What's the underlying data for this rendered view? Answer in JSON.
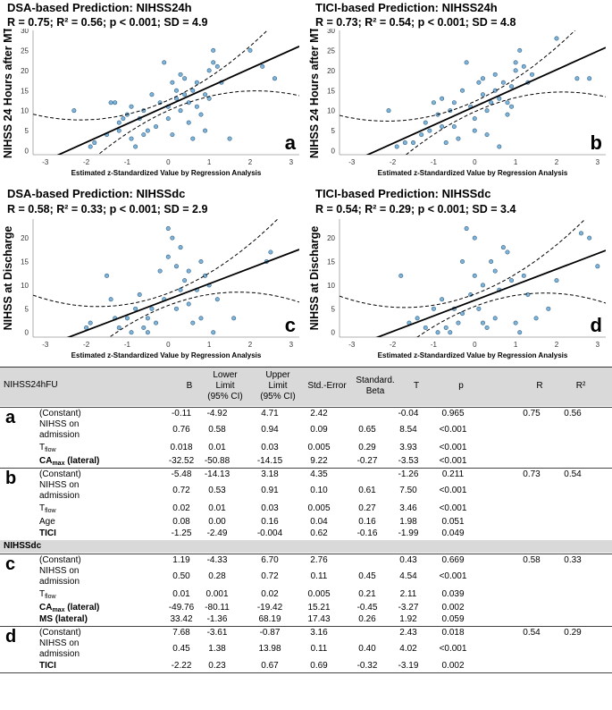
{
  "panels": [
    {
      "id": "a",
      "title": "DSA-based Prediction: NIHSS24h",
      "stats": "R = 0.75; R² = 0.56; p < 0.001; SD = 4.9",
      "ylabel": "NIHSS 24 Hours after MT",
      "xlabel": "Estimated z-Standardized Value by Regression Analysis",
      "letter": "a"
    },
    {
      "id": "b",
      "title": "TICI-based Prediction: NIHSS24h",
      "stats": "R = 0.73; R² = 0.54; p < 0.001; SD = 4.8",
      "ylabel": "NIHSS 24 Hours after MT",
      "xlabel": "Estimated z-Standardized Value by Regression Analysis",
      "letter": "b"
    },
    {
      "id": "c",
      "title": "DSA-based Prediction: NIHSSdc",
      "stats": "R = 0.58; R² = 0.33; p < 0.001; SD = 2.9",
      "ylabel": "NIHSS at Discharge",
      "xlabel": "Estimated z-Standardized Value by Regression Analysis",
      "letter": "c"
    },
    {
      "id": "d",
      "title": "TICI-based Prediction: NIHSSdc",
      "stats": "R = 0.54; R² = 0.29; p < 0.001; SD = 3.4",
      "ylabel": "NIHSS at Discharge",
      "xlabel": "Estimated z-Standardized Value by Regression Analysis",
      "letter": "d"
    }
  ],
  "chart_data": [
    {
      "type": "scatter",
      "title": "DSA-based Prediction: NIHSS24h",
      "xlabel": "Estimated z-Standardized Value by Regression Analysis",
      "ylabel": "NIHSS 24 Hours after MT",
      "xlim": [
        -3.3,
        3.2
      ],
      "ylim": [
        -1,
        30
      ],
      "xticks": [
        -3,
        -2,
        -1,
        0,
        1,
        2,
        3
      ],
      "yticks": [
        0,
        5,
        10,
        15,
        20,
        25,
        30
      ],
      "fit": {
        "intercept": 11.3,
        "slope": 4.6
      },
      "ci": 0.28,
      "points": [
        [
          -2.3,
          10
        ],
        [
          -1.9,
          1
        ],
        [
          -1.8,
          2
        ],
        [
          -1.5,
          4
        ],
        [
          -1.4,
          12
        ],
        [
          -1.3,
          12
        ],
        [
          -1.2,
          7
        ],
        [
          -1.1,
          8
        ],
        [
          -1.0,
          9
        ],
        [
          -0.9,
          3
        ],
        [
          -0.8,
          1
        ],
        [
          -0.7,
          8
        ],
        [
          -0.6,
          10
        ],
        [
          -0.5,
          5
        ],
        [
          -0.4,
          14
        ],
        [
          -0.3,
          6
        ],
        [
          -0.2,
          12
        ],
        [
          -0.1,
          22
        ],
        [
          0.0,
          11
        ],
        [
          0.0,
          8
        ],
        [
          0.1,
          4
        ],
        [
          0.1,
          17
        ],
        [
          0.2,
          15
        ],
        [
          0.2,
          13
        ],
        [
          0.3,
          10
        ],
        [
          0.3,
          19
        ],
        [
          0.4,
          14
        ],
        [
          0.5,
          7
        ],
        [
          0.5,
          12
        ],
        [
          0.6,
          15
        ],
        [
          0.7,
          17
        ],
        [
          0.7,
          11
        ],
        [
          0.8,
          9
        ],
        [
          0.9,
          5
        ],
        [
          1.0,
          20
        ],
        [
          1.1,
          25
        ],
        [
          1.1,
          22
        ],
        [
          1.2,
          21
        ],
        [
          1.3,
          17
        ],
        [
          1.5,
          3
        ],
        [
          2.0,
          25
        ],
        [
          2.3,
          21
        ],
        [
          2.6,
          18
        ],
        [
          -1.2,
          5
        ],
        [
          -0.6,
          4
        ],
        [
          0.6,
          3
        ],
        [
          0.9,
          14
        ],
        [
          -0.9,
          11
        ],
        [
          0.4,
          18
        ],
        [
          1.0,
          13
        ]
      ]
    },
    {
      "type": "scatter",
      "title": "TICI-based Prediction: NIHSS24h",
      "xlabel": "Estimated z-Standardized Value by Regression Analysis",
      "ylabel": "NIHSS 24 Hours after MT",
      "xlim": [
        -3.3,
        3.2
      ],
      "ylim": [
        -1,
        30
      ],
      "xticks": [
        -3,
        -2,
        -1,
        0,
        1,
        2,
        3
      ],
      "yticks": [
        0,
        5,
        10,
        15,
        20,
        25,
        30
      ],
      "fit": {
        "intercept": 11.0,
        "slope": 4.6
      },
      "ci": 0.28,
      "points": [
        [
          -2.1,
          10
        ],
        [
          -1.9,
          1
        ],
        [
          -1.7,
          2
        ],
        [
          -1.5,
          2
        ],
        [
          -1.3,
          4
        ],
        [
          -1.1,
          5
        ],
        [
          -1.0,
          12
        ],
        [
          -0.9,
          9
        ],
        [
          -0.8,
          6
        ],
        [
          -0.7,
          2
        ],
        [
          -0.6,
          10
        ],
        [
          -0.5,
          12
        ],
        [
          -0.4,
          3
        ],
        [
          -0.3,
          15
        ],
        [
          -0.2,
          22
        ],
        [
          -0.1,
          11
        ],
        [
          0.0,
          8
        ],
        [
          0.0,
          5
        ],
        [
          0.1,
          17
        ],
        [
          0.2,
          14
        ],
        [
          0.3,
          10
        ],
        [
          0.4,
          12
        ],
        [
          0.5,
          15
        ],
        [
          0.5,
          19
        ],
        [
          0.6,
          1
        ],
        [
          0.6,
          13
        ],
        [
          0.7,
          17
        ],
        [
          0.8,
          9
        ],
        [
          0.9,
          16
        ],
        [
          1.0,
          20
        ],
        [
          1.0,
          22
        ],
        [
          1.1,
          25
        ],
        [
          1.2,
          21
        ],
        [
          1.3,
          17
        ],
        [
          2.0,
          28
        ],
        [
          2.5,
          18
        ],
        [
          2.8,
          18
        ],
        [
          -1.2,
          7
        ],
        [
          -0.5,
          6
        ],
        [
          0.3,
          4
        ],
        [
          0.8,
          12
        ],
        [
          1.4,
          19
        ],
        [
          -0.8,
          13
        ],
        [
          0.2,
          18
        ],
        [
          0.9,
          11
        ]
      ]
    },
    {
      "type": "scatter",
      "title": "DSA-based Prediction: NIHSSdc",
      "xlabel": "Estimated z-Standardized Value by Regression Analysis",
      "ylabel": "NIHSS at Discharge",
      "xlim": [
        -3.3,
        3.2
      ],
      "ylim": [
        -1,
        24
      ],
      "xticks": [
        -3,
        -2,
        -1,
        0,
        1,
        2,
        3
      ],
      "yticks": [
        0,
        5,
        10,
        15,
        20
      ],
      "fit": {
        "intercept": 7.0,
        "slope": 3.3
      },
      "ci": 0.35,
      "points": [
        [
          -2.0,
          1
        ],
        [
          -1.9,
          2
        ],
        [
          -1.5,
          12
        ],
        [
          -1.4,
          7
        ],
        [
          -1.3,
          3
        ],
        [
          -1.2,
          1
        ],
        [
          -1.0,
          3
        ],
        [
          -0.9,
          0
        ],
        [
          -0.8,
          5
        ],
        [
          -0.7,
          8
        ],
        [
          -0.6,
          1
        ],
        [
          -0.5,
          0
        ],
        [
          -0.4,
          5
        ],
        [
          -0.3,
          2
        ],
        [
          -0.2,
          13
        ],
        [
          -0.1,
          7
        ],
        [
          0.0,
          22
        ],
        [
          0.0,
          16
        ],
        [
          0.1,
          20
        ],
        [
          0.2,
          14
        ],
        [
          0.3,
          9
        ],
        [
          0.3,
          18
        ],
        [
          0.4,
          11
        ],
        [
          0.5,
          6
        ],
        [
          0.6,
          2
        ],
        [
          0.7,
          9
        ],
        [
          0.8,
          3
        ],
        [
          0.9,
          12
        ],
        [
          1.0,
          10
        ],
        [
          1.1,
          0
        ],
        [
          1.2,
          7
        ],
        [
          1.6,
          3
        ],
        [
          2.4,
          15
        ],
        [
          2.5,
          17
        ],
        [
          0.5,
          13
        ],
        [
          0.2,
          5
        ],
        [
          -0.5,
          3
        ],
        [
          0.8,
          15
        ]
      ]
    },
    {
      "type": "scatter",
      "title": "TICI-based Prediction: NIHSSdc",
      "xlabel": "Estimated z-Standardized Value by Regression Analysis",
      "ylabel": "NIHSS at Discharge",
      "xlim": [
        -3.3,
        3.2
      ],
      "ylim": [
        -1,
        24
      ],
      "xticks": [
        -3,
        -2,
        -1,
        0,
        1,
        2,
        3
      ],
      "yticks": [
        0,
        5,
        10,
        15,
        20
      ],
      "fit": {
        "intercept": 6.8,
        "slope": 3.3
      },
      "ci": 0.35,
      "points": [
        [
          -1.8,
          12
        ],
        [
          -1.6,
          2
        ],
        [
          -1.4,
          3
        ],
        [
          -1.2,
          1
        ],
        [
          -1.0,
          5
        ],
        [
          -0.9,
          0
        ],
        [
          -0.8,
          7
        ],
        [
          -0.7,
          1
        ],
        [
          -0.6,
          0
        ],
        [
          -0.5,
          5
        ],
        [
          -0.4,
          2
        ],
        [
          -0.3,
          15
        ],
        [
          -0.2,
          22
        ],
        [
          -0.1,
          8
        ],
        [
          0.0,
          20
        ],
        [
          0.0,
          12
        ],
        [
          0.1,
          5
        ],
        [
          0.2,
          10
        ],
        [
          0.3,
          1
        ],
        [
          0.4,
          15
        ],
        [
          0.5,
          3
        ],
        [
          0.6,
          9
        ],
        [
          0.7,
          18
        ],
        [
          0.8,
          17
        ],
        [
          0.9,
          11
        ],
        [
          1.0,
          2
        ],
        [
          1.1,
          0
        ],
        [
          1.3,
          8
        ],
        [
          1.5,
          3
        ],
        [
          1.8,
          5
        ],
        [
          2.0,
          11
        ],
        [
          2.6,
          21
        ],
        [
          2.8,
          20
        ],
        [
          3.0,
          14
        ],
        [
          0.5,
          13
        ],
        [
          -0.3,
          4
        ],
        [
          1.2,
          12
        ],
        [
          0.2,
          2
        ]
      ]
    }
  ],
  "table": {
    "headers": {
      "label": "NIHSS24hFU",
      "b": "B",
      "lower": "Lower\nLimit\n(95% CI)",
      "upper": "Upper\nLimit\n(95% CI)",
      "se": "Std.-Error",
      "beta": "Standard.\nBeta",
      "t": "T",
      "p": "p",
      "r": "R",
      "r2": "R²"
    },
    "section_dc": "NIHSSdc",
    "models": [
      {
        "letter": "a",
        "r": "0.75",
        "r2": "0.56",
        "rows": [
          {
            "var": "(Constant)",
            "b": "-0.11",
            "lo": "-4.92",
            "up": "4.71",
            "se": "2.42",
            "beta": "",
            "t": "-0.04",
            "p": "0.965"
          },
          {
            "var": "NIHSS on\nadmission",
            "b": "0.76",
            "lo": "0.58",
            "up": "0.94",
            "se": "0.09",
            "beta": "0.65",
            "t": "8.54",
            "p": "<0.001"
          },
          {
            "var": "T",
            "sub": "flow",
            "b": "0.018",
            "lo": "0.01",
            "up": "0.03",
            "se": "0.005",
            "beta": "0.29",
            "t": "3.93",
            "p": "<0.001"
          },
          {
            "var": "CA",
            "sub": "max",
            "suffix": " (lateral)",
            "bold": true,
            "b": "-32.52",
            "lo": "-50.88",
            "up": "-14.15",
            "se": "9.22",
            "beta": "-0.27",
            "t": "-3.53",
            "p": "<0.001"
          }
        ]
      },
      {
        "letter": "b",
        "r": "0.73",
        "r2": "0.54",
        "rows": [
          {
            "var": "(Constant)",
            "b": "-5.48",
            "lo": "-14.13",
            "up": "3.18",
            "se": "4.35",
            "beta": "",
            "t": "-1.26",
            "p": "0.211"
          },
          {
            "var": "NIHSS on\nadmission",
            "b": "0.72",
            "lo": "0.53",
            "up": "0.91",
            "se": "0.10",
            "beta": "0.61",
            "t": "7.50",
            "p": "<0.001"
          },
          {
            "var": "T",
            "sub": "flow",
            "b": "0.02",
            "lo": "0.01",
            "up": "0.03",
            "se": "0.005",
            "beta": "0.27",
            "t": "3.46",
            "p": "<0.001"
          },
          {
            "var": "Age",
            "b": "0.08",
            "lo": "0.00",
            "up": "0.16",
            "se": "0.04",
            "beta": "0.16",
            "t": "1.98",
            "p": "0.051"
          },
          {
            "var": "TICI",
            "bold": true,
            "b": "-1.25",
            "lo": "-2.49",
            "up": "-0.004",
            "se": "0.62",
            "beta": "-0.16",
            "t": "-1.99",
            "p": "0.049"
          }
        ]
      },
      {
        "letter": "c",
        "r": "0.58",
        "r2": "0.33",
        "rows": [
          {
            "var": "(Constant)",
            "b": "1.19",
            "lo": "-4.33",
            "up": "6.70",
            "se": "2.76",
            "beta": "",
            "t": "0.43",
            "p": "0.669"
          },
          {
            "var": "NIHSS on\nadmission",
            "b": "0.50",
            "lo": "0.28",
            "up": "0.72",
            "se": "0.11",
            "beta": "0.45",
            "t": "4.54",
            "p": "<0.001"
          },
          {
            "var": "T",
            "sub": "flow",
            "b": "0.01",
            "lo": "0.001",
            "up": "0.02",
            "se": "0.005",
            "beta": "0.21",
            "t": "2.11",
            "p": "0.039"
          },
          {
            "var": "CA",
            "sub": "max",
            "suffix": " (lateral)",
            "bold": true,
            "b": "-49.76",
            "lo": "-80.11",
            "up": "-19.42",
            "se": "15.21",
            "beta": "-0.45",
            "t": "-3.27",
            "p": "0.002"
          },
          {
            "var": "MS (lateral)",
            "bold": true,
            "b": "33.42",
            "lo": "-1.36",
            "up": "68.19",
            "se": "17.43",
            "beta": "0.26",
            "t": "1.92",
            "p": "0.059"
          }
        ]
      },
      {
        "letter": "d",
        "r": "0.54",
        "r2": "0.29",
        "rows": [
          {
            "var": "(Constant)",
            "b": "7.68",
            "lo": "-3.61",
            "up": "-0.87",
            "se": "3.16",
            "beta": "",
            "t": "2.43",
            "p": "0.018"
          },
          {
            "var": "NIHSS on\nadmission",
            "b": "0.45",
            "lo": "1.38",
            "up": "13.98",
            "se": "0.11",
            "beta": "0.40",
            "t": "4.02",
            "p": "<0.001"
          },
          {
            "var": "TICI",
            "bold": true,
            "b": "-2.22",
            "lo": "0.23",
            "up": "0.67",
            "se": "0.69",
            "beta": "-0.32",
            "t": "-3.19",
            "p": "0.002"
          }
        ]
      }
    ]
  }
}
